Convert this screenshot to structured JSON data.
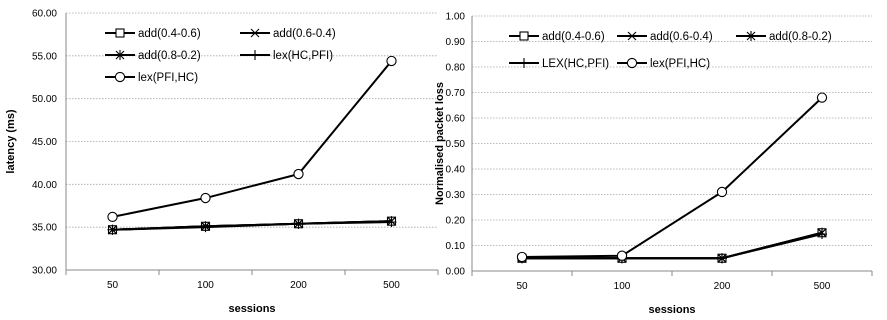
{
  "chart_data": [
    {
      "type": "line",
      "xlabel": "sessions",
      "ylabel": "latency (ms)",
      "categories": [
        "50",
        "100",
        "200",
        "500"
      ],
      "ylim": [
        30,
        60
      ],
      "ytick_step": 5,
      "ytick_decimals": 2,
      "grid": "horizontal",
      "legend_position": "top-left, inside plot",
      "series": [
        {
          "name": "add(0.4-0.6)",
          "marker": "square",
          "values": [
            34.7,
            35.1,
            35.4,
            35.7
          ]
        },
        {
          "name": "add(0.6-0.4)",
          "marker": "x",
          "values": [
            34.7,
            35.1,
            35.4,
            35.7
          ]
        },
        {
          "name": "add(0.8-0.2)",
          "marker": "asterisk",
          "values": [
            34.7,
            35.1,
            35.4,
            35.7
          ]
        },
        {
          "name": "lex(HC,PFI)",
          "marker": "plus",
          "values": [
            34.7,
            35.0,
            35.4,
            35.6
          ]
        },
        {
          "name": "lex(PFI,HC)",
          "marker": "circle",
          "values": [
            36.2,
            38.4,
            41.2,
            54.4
          ]
        }
      ]
    },
    {
      "type": "line",
      "xlabel": "sessions",
      "ylabel": "Normalised packet loss",
      "categories": [
        "50",
        "100",
        "200",
        "500"
      ],
      "ylim": [
        0,
        1
      ],
      "ytick_step": 0.1,
      "ytick_decimals": 2,
      "grid": "horizontal",
      "legend_position": "top, inside plot",
      "series": [
        {
          "name": "add(0.4-0.6)",
          "marker": "square",
          "values": [
            0.05,
            0.05,
            0.05,
            0.15
          ]
        },
        {
          "name": "add(0.6-0.4)",
          "marker": "x",
          "values": [
            0.05,
            0.05,
            0.05,
            0.15
          ]
        },
        {
          "name": "add(0.8-0.2)",
          "marker": "asterisk",
          "values": [
            0.05,
            0.05,
            0.05,
            0.15
          ]
        },
        {
          "name": "LEX(HC,PFI)",
          "marker": "plus",
          "values": [
            0.05,
            0.05,
            0.05,
            0.145
          ]
        },
        {
          "name": "lex(PFI,HC)",
          "marker": "circle",
          "values": [
            0.055,
            0.06,
            0.31,
            0.68
          ]
        }
      ]
    }
  ]
}
